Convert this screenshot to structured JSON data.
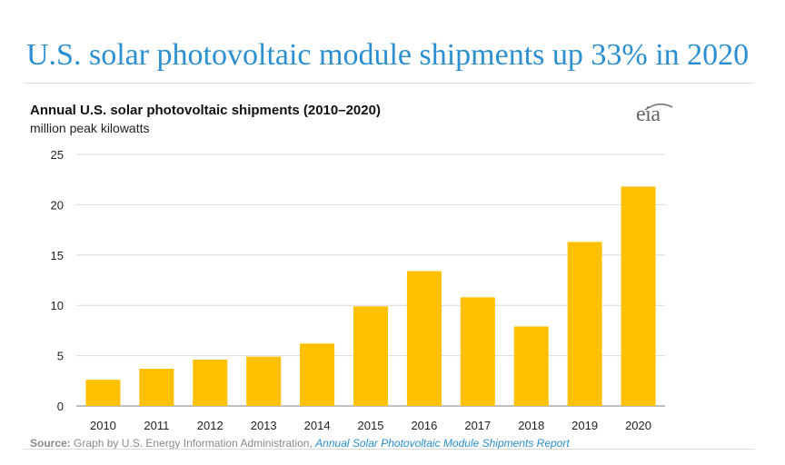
{
  "headline": "U.S. solar photovoltaic module shipments up 33% in 2020",
  "logo_text": "eia",
  "colors": {
    "headline": "#2b8fd1",
    "bar": "#ffc000",
    "grid": "#d9d9d9",
    "source_link": "#2b8fd1"
  },
  "source": {
    "label": "Source:",
    "text": "Graph by U.S. Energy Information Administration,",
    "link": "Annual Solar Photovoltaic Module Shipments Report"
  },
  "chart_data": {
    "type": "bar",
    "title": "Annual U.S. solar photovoltaic shipments (2010–2020)",
    "subtitle": "million peak kilowatts",
    "categories": [
      "2010",
      "2011",
      "2012",
      "2013",
      "2014",
      "2015",
      "2016",
      "2017",
      "2018",
      "2019",
      "2020"
    ],
    "values": [
      2.6,
      3.7,
      4.6,
      4.9,
      6.2,
      9.9,
      13.4,
      10.8,
      7.9,
      16.3,
      21.8
    ],
    "ylim": [
      0,
      25
    ],
    "yticks": [
      0,
      5,
      10,
      15,
      20,
      25
    ],
    "grid": true,
    "legend": "none"
  }
}
